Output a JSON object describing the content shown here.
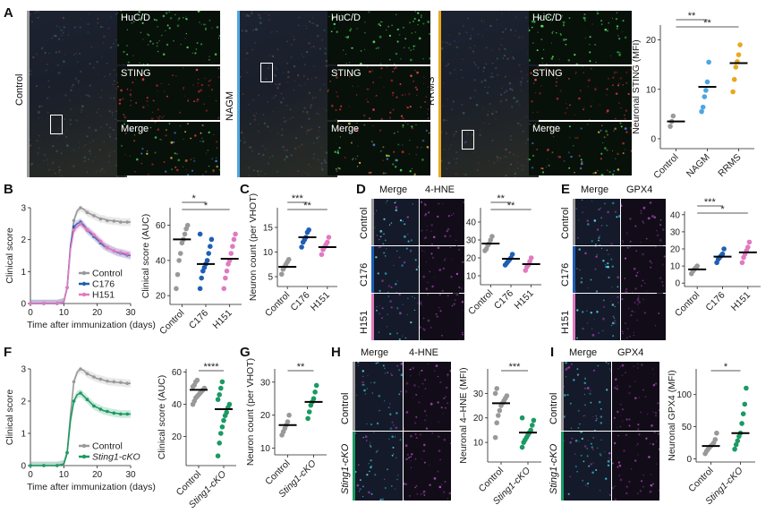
{
  "panel_letters": [
    "A",
    "B",
    "C",
    "D",
    "E",
    "F",
    "G",
    "H",
    "I"
  ],
  "panelA": {
    "groups": [
      "Control",
      "NAGM",
      "RRMS"
    ],
    "channels": [
      "HuC/D",
      "STING",
      "Merge"
    ],
    "group_colors": [
      "#9a9a9a",
      "#4ea6e0",
      "#e8a81e"
    ]
  },
  "panelD": {
    "channels": [
      "Merge",
      "4-HNE"
    ],
    "rows": [
      "Control",
      "C176",
      "H151"
    ]
  },
  "panelE": {
    "channels": [
      "Merge",
      "GPX4"
    ],
    "rows": [
      "Control",
      "C176",
      "H151"
    ]
  },
  "panelH": {
    "channels": [
      "Merge",
      "4-HNE"
    ],
    "rows": [
      "Control",
      "Sting1-cKO"
    ]
  },
  "panelI": {
    "channels": [
      "Merge",
      "GPX4"
    ],
    "rows": [
      "Control",
      "Sting1-cKO"
    ]
  },
  "chart_data": [
    {
      "id": "A",
      "type": "scatter",
      "ylabel": "Neuronal STING (MFI)",
      "categories": [
        "Control",
        "NAGM",
        "RRMS"
      ],
      "colors": [
        "#9a9a9a",
        "#4ea6e0",
        "#e8a81e"
      ],
      "ylim": [
        -2,
        23
      ],
      "yticks": [
        0,
        10,
        20
      ],
      "points": [
        [
          2.5,
          3.5,
          4.6
        ],
        [
          5.5,
          6.4,
          8.5,
          9.8,
          11.5,
          15.5
        ],
        [
          9.5,
          12,
          14.5,
          15.6,
          17,
          19
        ]
      ],
      "means": [
        3.5,
        10.5,
        15.3
      ],
      "significance": [
        {
          "from": 0,
          "to": 1,
          "label": "**"
        },
        {
          "from": 0,
          "to": 2,
          "label": "**"
        }
      ]
    },
    {
      "id": "B-line",
      "type": "line",
      "xlabel": "Time after immunization (days)",
      "ylabel": "Clinical score",
      "xlim": [
        0,
        30
      ],
      "ylim": [
        0,
        3
      ],
      "xticks": [
        0,
        10,
        20,
        30
      ],
      "yticks": [
        0,
        1,
        2,
        3
      ],
      "legend": [
        "Control",
        "C176",
        "H151"
      ],
      "legend_position": "bottom-right",
      "series": [
        {
          "name": "Control",
          "color": "#999999",
          "x": [
            0,
            2,
            4,
            6,
            8,
            10,
            11,
            12,
            13,
            14,
            15,
            16,
            17,
            18,
            19,
            20,
            21,
            22,
            23,
            24,
            25,
            26,
            27,
            28,
            29,
            30
          ],
          "y": [
            0,
            0,
            0,
            0,
            0,
            0.05,
            0.5,
            1.8,
            2.6,
            2.9,
            3.0,
            2.95,
            2.85,
            2.8,
            2.75,
            2.7,
            2.65,
            2.65,
            2.6,
            2.6,
            2.58,
            2.58,
            2.55,
            2.55,
            2.55,
            2.55
          ]
        },
        {
          "name": "C176",
          "color": "#1f5fb4",
          "x": [
            0,
            2,
            4,
            6,
            8,
            10,
            11,
            12,
            13,
            14,
            15,
            16,
            17,
            18,
            19,
            20,
            21,
            22,
            23,
            24,
            25,
            26,
            27,
            28,
            29,
            30
          ],
          "y": [
            0,
            0,
            0,
            0,
            0,
            0.05,
            0.5,
            1.8,
            2.4,
            2.5,
            2.55,
            2.45,
            2.3,
            2.2,
            2.1,
            2.0,
            1.9,
            1.8,
            1.75,
            1.7,
            1.65,
            1.6,
            1.58,
            1.55,
            1.52,
            1.5
          ]
        },
        {
          "name": "H151",
          "color": "#e07ac0",
          "x": [
            0,
            2,
            4,
            6,
            8,
            10,
            11,
            12,
            13,
            14,
            15,
            16,
            17,
            18,
            19,
            20,
            21,
            22,
            23,
            24,
            25,
            26,
            27,
            28,
            29,
            30
          ],
          "y": [
            0,
            0,
            0,
            0,
            0,
            0.05,
            0.5,
            1.7,
            2.3,
            2.4,
            2.5,
            2.4,
            2.3,
            2.25,
            2.15,
            2.05,
            1.95,
            1.85,
            1.75,
            1.7,
            1.65,
            1.62,
            1.6,
            1.58,
            1.55,
            1.52
          ]
        }
      ]
    },
    {
      "id": "B-auc",
      "type": "scatter",
      "ylabel": "Clinical score (AUC)",
      "categories": [
        "Control",
        "C176",
        "H151"
      ],
      "colors": [
        "#999999",
        "#1f5fb4",
        "#e07ac0"
      ],
      "ylim": [
        15,
        70
      ],
      "yticks": [
        20,
        40,
        60
      ],
      "points": [
        [
          24,
          32,
          40,
          44,
          50,
          52,
          55,
          58,
          60
        ],
        [
          24,
          30,
          34,
          36,
          38,
          40,
          44,
          48,
          52,
          55
        ],
        [
          24,
          30,
          34,
          38,
          40,
          44,
          48,
          52,
          55
        ]
      ],
      "means": [
        52,
        38,
        41
      ],
      "significance": [
        {
          "from": 0,
          "to": 1,
          "label": "*"
        },
        {
          "from": 0,
          "to": 2,
          "label": "*"
        }
      ]
    },
    {
      "id": "C",
      "type": "scatter",
      "ylabel": "Neuron count (per VHOT)",
      "categories": [
        "Control",
        "C176",
        "H151"
      ],
      "colors": [
        "#999999",
        "#1f5fb4",
        "#e07ac0"
      ],
      "ylim": [
        3,
        19
      ],
      "yticks": [
        5,
        10,
        15
      ],
      "points": [
        [
          5.5,
          6.5,
          7,
          7.5,
          8,
          8.5
        ],
        [
          11,
          12,
          12.5,
          13,
          14,
          14.5
        ],
        [
          9.5,
          10.5,
          11,
          11.5,
          12,
          13
        ]
      ],
      "means": [
        7,
        13,
        11
      ],
      "significance": [
        {
          "from": 0,
          "to": 1,
          "label": "***"
        },
        {
          "from": 0,
          "to": 2,
          "label": "**"
        }
      ]
    },
    {
      "id": "D",
      "type": "scatter",
      "ylabel": "Neuronal 4–HNE (MFI)",
      "categories": [
        "Control",
        "C176",
        "H151"
      ],
      "colors": [
        "#999999",
        "#1f5fb4",
        "#e07ac0"
      ],
      "ylim": [
        5,
        48
      ],
      "yticks": [
        10,
        20,
        30,
        40
      ],
      "points": [
        [
          24,
          25,
          27,
          28,
          30,
          32
        ],
        [
          16,
          17,
          18,
          19,
          20,
          22
        ],
        [
          13,
          15,
          16,
          18,
          20
        ]
      ],
      "means": [
        28,
        19.5,
        16.5
      ],
      "significance": [
        {
          "from": 0,
          "to": 1,
          "label": "**"
        },
        {
          "from": 0,
          "to": 2,
          "label": "**"
        }
      ]
    },
    {
      "id": "E",
      "type": "scatter",
      "ylabel": "Neuronal GPX4 (MFI)",
      "categories": [
        "Control",
        "C176",
        "H151"
      ],
      "colors": [
        "#999999",
        "#1f5fb4",
        "#e07ac0"
      ],
      "ylim": [
        -2,
        42
      ],
      "yticks": [
        0,
        10,
        20,
        30,
        40
      ],
      "points": [
        [
          5.5,
          7,
          8,
          9,
          10
        ],
        [
          12,
          14,
          15,
          16,
          17,
          20
        ],
        [
          12,
          15,
          17,
          19,
          21,
          24
        ]
      ],
      "means": [
        8,
        15.5,
        18
      ],
      "significance": [
        {
          "from": 0,
          "to": 1,
          "label": "***"
        },
        {
          "from": 0,
          "to": 2,
          "label": "*"
        }
      ]
    },
    {
      "id": "F-line",
      "type": "line",
      "xlabel": "Time after immunization (days)",
      "ylabel": "Clinical score",
      "xlim": [
        0,
        30
      ],
      "ylim": [
        0,
        3
      ],
      "xticks": [
        0,
        10,
        20,
        30
      ],
      "yticks": [
        0,
        1,
        2,
        3
      ],
      "legend": [
        "Control",
        "Sting1-cKO"
      ],
      "legend_position": "bottom-right",
      "series": [
        {
          "name": "Control",
          "color": "#999999",
          "x": [
            0,
            2,
            4,
            6,
            8,
            10,
            11,
            12,
            13,
            14,
            15,
            16,
            17,
            18,
            19,
            20,
            21,
            22,
            23,
            24,
            25,
            26,
            27,
            28,
            29,
            30
          ],
          "y": [
            0,
            0,
            0,
            0,
            0,
            0.05,
            0.4,
            1.6,
            2.6,
            2.9,
            3.0,
            2.95,
            2.85,
            2.8,
            2.75,
            2.7,
            2.68,
            2.65,
            2.62,
            2.6,
            2.6,
            2.58,
            2.58,
            2.56,
            2.55,
            2.55
          ]
        },
        {
          "name": "Sting1-cKO",
          "color": "#1a9a63",
          "x": [
            0,
            2,
            4,
            6,
            8,
            10,
            11,
            12,
            13,
            14,
            15,
            16,
            17,
            18,
            19,
            20,
            21,
            22,
            23,
            24,
            25,
            26,
            27,
            28,
            29,
            30
          ],
          "y": [
            0,
            0,
            0,
            0,
            0,
            0.05,
            0.4,
            1.4,
            2.0,
            2.2,
            2.25,
            2.15,
            2.05,
            1.95,
            1.85,
            1.8,
            1.75,
            1.7,
            1.68,
            1.65,
            1.63,
            1.62,
            1.6,
            1.6,
            1.6,
            1.6
          ]
        }
      ]
    },
    {
      "id": "F-auc",
      "type": "scatter",
      "ylabel": "Clinical score (AUC)",
      "categories": [
        "Control",
        "Sting1-cKO"
      ],
      "colors": [
        "#999999",
        "#1a9a63"
      ],
      "ylim": [
        2,
        62
      ],
      "yticks": [
        20,
        40,
        60
      ],
      "points": [
        [
          40,
          42,
          44,
          45,
          46,
          47,
          48,
          49,
          50,
          51,
          52,
          54,
          55
        ],
        [
          8,
          16,
          22,
          26,
          30,
          33,
          35,
          38,
          40,
          43,
          46,
          50,
          54
        ]
      ],
      "means": [
        49,
        37
      ],
      "significance": [
        {
          "from": 0,
          "to": 1,
          "label": "****"
        }
      ]
    },
    {
      "id": "G",
      "type": "scatter",
      "ylabel": "Neuron count (per VHOT)",
      "categories": [
        "Control",
        "Sting1-cKO"
      ],
      "colors": [
        "#999999",
        "#1a9a63"
      ],
      "ylim": [
        8,
        34
      ],
      "yticks": [
        10,
        20,
        30
      ],
      "points": [
        [
          14,
          15,
          16,
          17,
          18,
          20
        ],
        [
          19,
          21,
          23,
          24,
          25,
          27,
          29
        ]
      ],
      "means": [
        17,
        24
      ],
      "significance": [
        {
          "from": 0,
          "to": 1,
          "label": "**"
        }
      ]
    },
    {
      "id": "H",
      "type": "scatter",
      "ylabel": "Neuronal 4–HNE (MFI)",
      "categories": [
        "Control",
        "Sting1-cKO"
      ],
      "colors": [
        "#999999",
        "#1a9a63"
      ],
      "ylim": [
        2,
        40
      ],
      "yticks": [
        10,
        20,
        30
      ],
      "points": [
        [
          12,
          18,
          21,
          23,
          25,
          26,
          27,
          28,
          29,
          30,
          32
        ],
        [
          8,
          10,
          11,
          12,
          13,
          14,
          15,
          17,
          19,
          20
        ]
      ],
      "means": [
        26,
        14
      ],
      "significance": [
        {
          "from": 0,
          "to": 1,
          "label": "***"
        }
      ]
    },
    {
      "id": "I",
      "type": "scatter",
      "ylabel": "Neuronal GPX4 (MFI)",
      "categories": [
        "Control",
        "Sting1-cKO"
      ],
      "colors": [
        "#999999",
        "#1a9a63"
      ],
      "ylim": [
        -5,
        140
      ],
      "yticks": [
        0,
        50,
        100
      ],
      "points": [
        [
          8,
          12,
          15,
          18,
          20,
          22,
          25,
          30,
          40
        ],
        [
          15,
          22,
          28,
          35,
          40,
          55,
          70,
          85,
          110
        ]
      ],
      "means": [
        20,
        40
      ],
      "significance": [
        {
          "from": 0,
          "to": 1,
          "label": "*"
        }
      ]
    }
  ]
}
